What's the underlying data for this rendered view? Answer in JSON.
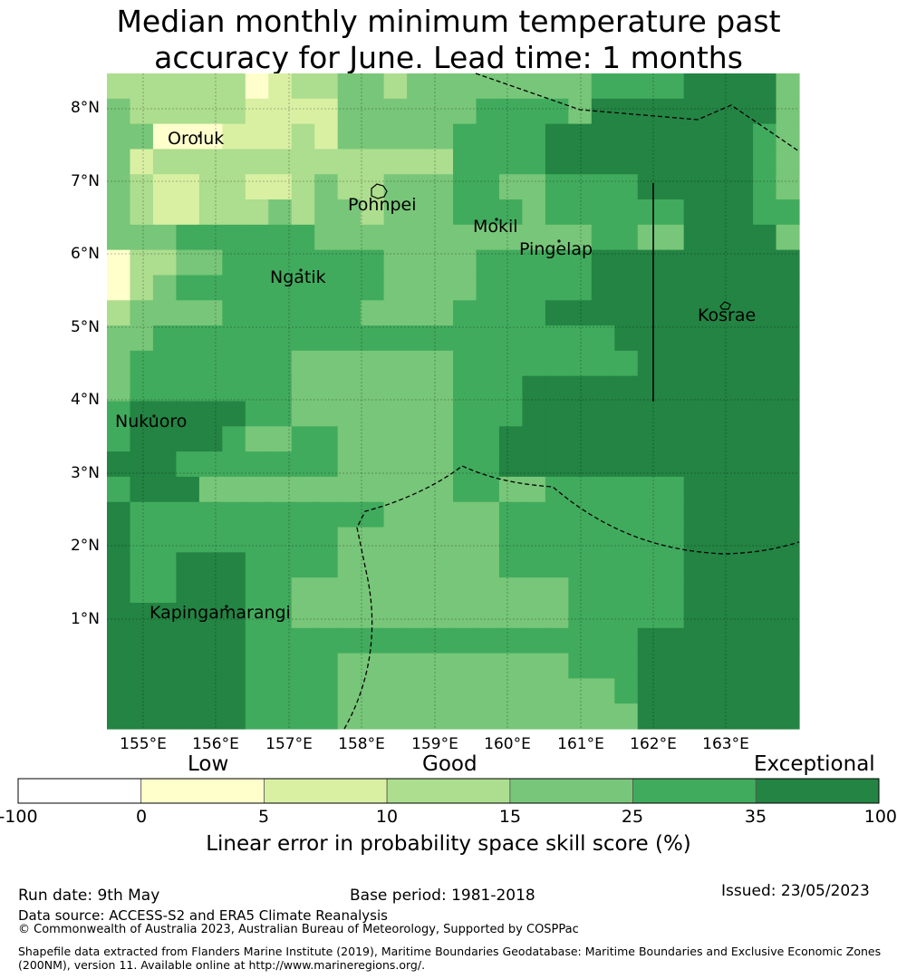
{
  "title": {
    "line1": "Median monthly minimum temperature past",
    "line2": "accuracy for June. Lead time: 1 months"
  },
  "map": {
    "lat_labels": [
      "8°N",
      "7°N",
      "6°N",
      "5°N",
      "4°N",
      "3°N",
      "2°N",
      "1°N"
    ],
    "lon_labels": [
      "155°E",
      "156°E",
      "157°E",
      "158°E",
      "159°E",
      "160°E",
      "161°E",
      "162°E",
      "163°E"
    ],
    "places": [
      "Oroluk",
      "Pohnpei",
      "Mokil",
      "Pingelap",
      "Ngatik",
      "Kosrae",
      "Nukuoro",
      "Kapingamarangi"
    ],
    "skill_levels": [
      [
        3,
        3,
        3,
        3,
        3,
        3,
        1,
        2,
        3,
        3,
        4,
        4,
        3,
        4,
        4,
        4,
        4,
        4,
        4,
        4,
        4,
        5,
        5,
        5,
        5,
        6,
        6,
        6,
        6,
        4
      ],
      [
        4,
        3,
        3,
        3,
        3,
        3,
        2,
        2,
        2,
        2,
        4,
        4,
        4,
        4,
        4,
        4,
        5,
        5,
        5,
        5,
        4,
        6,
        6,
        6,
        6,
        6,
        6,
        6,
        6,
        4
      ],
      [
        4,
        4,
        1,
        1,
        1,
        2,
        2,
        2,
        3,
        2,
        4,
        4,
        4,
        4,
        4,
        5,
        5,
        5,
        5,
        6,
        6,
        6,
        6,
        6,
        6,
        6,
        6,
        6,
        5,
        4
      ],
      [
        4,
        2,
        3,
        3,
        3,
        3,
        3,
        3,
        3,
        3,
        3,
        3,
        3,
        3,
        3,
        5,
        5,
        5,
        5,
        6,
        6,
        6,
        6,
        6,
        6,
        6,
        6,
        6,
        5,
        4
      ],
      [
        4,
        3,
        2,
        2,
        3,
        3,
        2,
        2,
        3,
        4,
        3,
        3,
        4,
        4,
        4,
        5,
        5,
        4,
        4,
        5,
        5,
        5,
        5,
        6,
        6,
        6,
        6,
        6,
        5,
        4
      ],
      [
        4,
        3,
        2,
        2,
        3,
        3,
        3,
        4,
        3,
        4,
        4,
        3,
        4,
        4,
        4,
        5,
        5,
        5,
        4,
        5,
        5,
        5,
        5,
        5,
        5,
        6,
        6,
        6,
        5,
        5
      ],
      [
        4,
        4,
        4,
        5,
        5,
        5,
        5,
        5,
        5,
        4,
        4,
        4,
        4,
        4,
        4,
        4,
        4,
        4,
        4,
        4,
        4,
        5,
        5,
        4,
        4,
        6,
        6,
        6,
        6,
        4
      ],
      [
        1,
        3,
        3,
        4,
        4,
        5,
        5,
        5,
        5,
        5,
        5,
        5,
        4,
        4,
        4,
        4,
        5,
        5,
        5,
        5,
        5,
        6,
        6,
        6,
        6,
        6,
        6,
        6,
        6,
        6
      ],
      [
        1,
        3,
        4,
        5,
        5,
        5,
        5,
        5,
        5,
        5,
        5,
        5,
        4,
        4,
        4,
        4,
        5,
        5,
        5,
        5,
        5,
        6,
        6,
        6,
        6,
        6,
        6,
        6,
        6,
        6
      ],
      [
        3,
        4,
        4,
        4,
        4,
        5,
        5,
        5,
        5,
        5,
        5,
        4,
        4,
        4,
        4,
        5,
        5,
        5,
        5,
        6,
        6,
        6,
        6,
        6,
        6,
        6,
        6,
        6,
        6,
        6
      ],
      [
        4,
        4,
        5,
        5,
        5,
        5,
        5,
        5,
        5,
        5,
        5,
        5,
        5,
        5,
        5,
        5,
        5,
        5,
        5,
        5,
        5,
        5,
        6,
        6,
        6,
        6,
        6,
        6,
        6,
        6
      ],
      [
        4,
        5,
        5,
        5,
        5,
        5,
        5,
        5,
        4,
        4,
        4,
        4,
        4,
        4,
        4,
        5,
        5,
        5,
        5,
        5,
        5,
        5,
        5,
        6,
        6,
        6,
        6,
        6,
        6,
        6
      ],
      [
        4,
        5,
        5,
        5,
        5,
        5,
        5,
        5,
        4,
        4,
        4,
        4,
        4,
        4,
        4,
        5,
        5,
        5,
        6,
        6,
        6,
        6,
        6,
        6,
        6,
        6,
        6,
        6,
        6,
        6
      ],
      [
        5,
        6,
        6,
        6,
        6,
        6,
        5,
        5,
        4,
        4,
        4,
        4,
        4,
        4,
        4,
        5,
        5,
        5,
        6,
        6,
        6,
        6,
        6,
        6,
        6,
        6,
        6,
        6,
        6,
        6
      ],
      [
        5,
        6,
        6,
        6,
        6,
        5,
        4,
        4,
        5,
        5,
        4,
        4,
        4,
        4,
        4,
        5,
        5,
        6,
        6,
        6,
        6,
        6,
        6,
        6,
        6,
        6,
        6,
        6,
        6,
        6
      ],
      [
        6,
        6,
        6,
        5,
        5,
        5,
        5,
        5,
        5,
        5,
        4,
        4,
        4,
        4,
        4,
        5,
        5,
        6,
        6,
        6,
        6,
        6,
        6,
        6,
        6,
        6,
        6,
        6,
        6,
        6
      ],
      [
        5,
        6,
        6,
        6,
        4,
        4,
        4,
        4,
        4,
        4,
        4,
        4,
        4,
        4,
        4,
        5,
        5,
        4,
        4,
        5,
        5,
        5,
        5,
        5,
        5,
        6,
        6,
        6,
        6,
        6
      ],
      [
        6,
        5,
        5,
        5,
        5,
        5,
        5,
        5,
        5,
        5,
        5,
        5,
        4,
        4,
        4,
        4,
        4,
        5,
        5,
        5,
        5,
        5,
        5,
        5,
        5,
        6,
        6,
        6,
        6,
        6
      ],
      [
        6,
        5,
        5,
        5,
        5,
        5,
        5,
        5,
        5,
        5,
        4,
        4,
        4,
        4,
        4,
        4,
        4,
        5,
        5,
        5,
        5,
        5,
        5,
        5,
        5,
        6,
        6,
        6,
        6,
        6
      ],
      [
        6,
        5,
        5,
        6,
        6,
        6,
        5,
        5,
        5,
        5,
        4,
        4,
        4,
        4,
        4,
        4,
        4,
        5,
        5,
        5,
        5,
        5,
        5,
        5,
        5,
        6,
        6,
        6,
        6,
        6
      ],
      [
        6,
        5,
        5,
        6,
        6,
        6,
        5,
        5,
        4,
        4,
        4,
        4,
        4,
        4,
        4,
        4,
        4,
        4,
        4,
        4,
        5,
        5,
        5,
        5,
        5,
        6,
        6,
        6,
        6,
        6
      ],
      [
        6,
        6,
        6,
        6,
        6,
        6,
        5,
        5,
        4,
        4,
        4,
        4,
        4,
        4,
        4,
        4,
        4,
        4,
        4,
        4,
        5,
        5,
        5,
        5,
        5,
        6,
        6,
        6,
        6,
        6
      ],
      [
        6,
        6,
        6,
        6,
        6,
        6,
        5,
        5,
        5,
        5,
        5,
        5,
        5,
        5,
        5,
        5,
        5,
        5,
        5,
        5,
        5,
        5,
        5,
        6,
        6,
        6,
        6,
        6,
        6,
        6
      ],
      [
        6,
        6,
        6,
        6,
        6,
        6,
        5,
        5,
        5,
        5,
        4,
        4,
        4,
        4,
        4,
        4,
        4,
        4,
        4,
        4,
        5,
        5,
        5,
        6,
        6,
        6,
        6,
        6,
        6,
        6
      ],
      [
        6,
        6,
        6,
        6,
        6,
        6,
        5,
        5,
        5,
        5,
        4,
        4,
        4,
        4,
        4,
        4,
        4,
        4,
        4,
        4,
        4,
        4,
        5,
        6,
        6,
        6,
        6,
        6,
        6,
        6
      ],
      [
        6,
        6,
        6,
        6,
        6,
        6,
        5,
        5,
        5,
        5,
        4,
        4,
        4,
        4,
        4,
        4,
        4,
        4,
        4,
        4,
        4,
        4,
        4,
        6,
        6,
        6,
        6,
        6,
        6,
        6
      ]
    ]
  },
  "colorbar": {
    "categories": [
      "Low",
      "Good",
      "Exceptional"
    ],
    "ticks": [
      "-100",
      "0",
      "5",
      "10",
      "15",
      "25",
      "35",
      "100"
    ],
    "colors": [
      "#ffffff",
      "#ffffcc",
      "#d9f0a3",
      "#addd8e",
      "#78c679",
      "#41ab5d",
      "#238443"
    ],
    "label": "Linear error in probability space skill score (%)"
  },
  "footer": {
    "run_date": "Run date: 9th May",
    "base_period": "Base period: 1981-2018",
    "issued": "Issued: 23/05/2023",
    "data_source": "Data source: ACCESS-S2 and ERA5 Climate Reanalysis",
    "copyright": "© Commonwealth of Australia 2023, Australian Bureau of Meteorology, Supported by COSPPac",
    "shapefile_line1": "Shapefile data extracted from Flanders Marine Institute (2019), Maritime Boundaries Geodatabase: Maritime Boundaries and Exclusive Economic Zones",
    "shapefile_line2": "(200NM), version 11. Available online at http://www.marineregions.org/."
  }
}
